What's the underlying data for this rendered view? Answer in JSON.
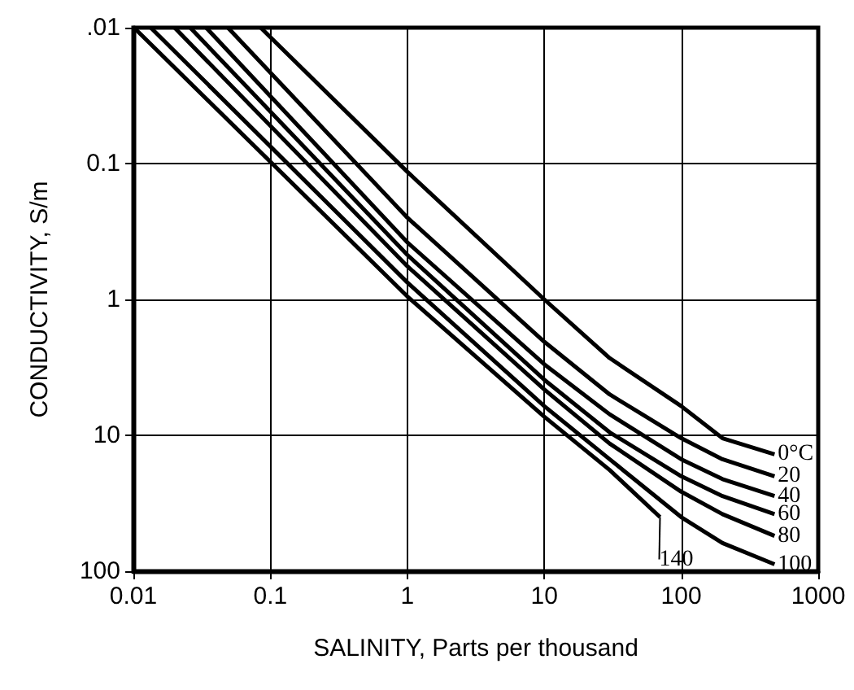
{
  "chart_data": {
    "type": "line",
    "xlabel": "SALINITY, Parts per thousand",
    "ylabel": "CONDUCTIVITY, S/m",
    "log": "xy",
    "grid": true,
    "legend": false,
    "marker": "none",
    "line_style": "solid",
    "xlim": [
      0.01,
      1000
    ],
    "xticks": [
      0.01,
      0.1,
      1,
      10,
      100,
      1000
    ],
    "ylim": [
      100,
      0.01
    ],
    "yticks": [
      {
        "value": 0.01,
        "label": ".01"
      },
      0.1,
      1,
      10,
      100
    ],
    "series": [
      {
        "name": "0°C",
        "color": "#000000",
        "x": [
          0.085,
          1,
          10,
          30,
          100,
          200,
          480
        ],
        "values": [
          0.01,
          0.115,
          1.0,
          2.7,
          6.1,
          10.5,
          13.8
        ]
      },
      {
        "name": "20",
        "color": "#000000",
        "x": [
          0.049,
          1,
          10,
          30,
          100,
          200,
          480
        ],
        "values": [
          0.01,
          0.25,
          2.05,
          5.0,
          10.5,
          15,
          20
        ]
      },
      {
        "name": "40",
        "color": "#000000",
        "x": [
          0.034,
          1,
          10,
          30,
          100,
          200,
          480
        ],
        "values": [
          0.01,
          0.38,
          3.0,
          7,
          15,
          21,
          28
        ]
      },
      {
        "name": "60",
        "color": "#000000",
        "x": [
          0.026,
          1,
          10,
          30,
          100,
          200,
          480
        ],
        "values": [
          0.01,
          0.47,
          3.9,
          9.5,
          20,
          28,
          38
        ]
      },
      {
        "name": "80",
        "color": "#000000",
        "x": [
          0.02,
          1,
          10,
          30,
          100,
          200,
          480
        ],
        "values": [
          0.01,
          0.57,
          4.6,
          11.5,
          26,
          38,
          55
        ]
      },
      {
        "name": "100",
        "color": "#000000",
        "x": [
          0.0134,
          1,
          10,
          30,
          100,
          200,
          480
        ],
        "values": [
          0.01,
          0.75,
          6.1,
          15,
          40,
          62,
          89
        ]
      },
      {
        "name": "140",
        "color": "#000000",
        "x": [
          0.0101,
          1,
          10,
          30,
          70
        ],
        "values": [
          0.01,
          0.95,
          7.3,
          18,
          40
        ]
      }
    ]
  }
}
